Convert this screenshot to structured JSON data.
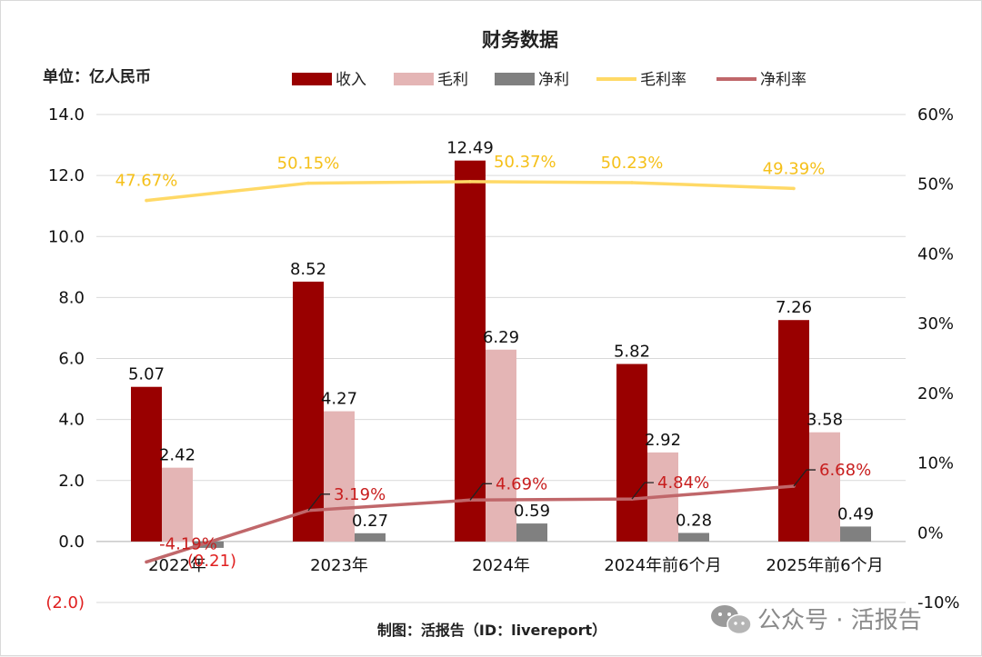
{
  "colors": {
    "revenue": "#990000",
    "gross_profit": "#e4b5b5",
    "net_profit": "#808080",
    "gross_margin": "#ffd966",
    "net_margin": "#c0676a",
    "grid": "#d9d9d9",
    "negative_text": "#e02020",
    "gross_margin_text": "#f5c01a",
    "net_margin_text": "#c81e1e"
  },
  "unit_label": "单位：亿人民币",
  "source_label": "制图：活报告（ID：livereport）",
  "watermark": {
    "icon": "wechat-icon",
    "text": "公众号 · 活报告"
  },
  "chart_data": {
    "type": "bar",
    "title": "财务数据",
    "categories": [
      "2022年",
      "2023年",
      "2024年",
      "2024年前6个月",
      "2025年前6个月"
    ],
    "series": [
      {
        "name": "收入",
        "kind": "bar",
        "axis": "left",
        "values": [
          5.07,
          8.52,
          12.49,
          5.82,
          7.26
        ],
        "labels": [
          "5.07",
          "8.52",
          "12.49",
          "5.82",
          "7.26"
        ]
      },
      {
        "name": "毛利",
        "kind": "bar",
        "axis": "left",
        "values": [
          2.42,
          4.27,
          6.29,
          2.92,
          3.58
        ],
        "labels": [
          "2.42",
          "4.27",
          "6.29",
          "2.92",
          "3.58"
        ]
      },
      {
        "name": "净利",
        "kind": "bar",
        "axis": "left",
        "values": [
          -0.21,
          0.27,
          0.59,
          0.28,
          0.49
        ],
        "labels": [
          "(0.21)",
          "0.27",
          "0.59",
          "0.28",
          "0.49"
        ]
      },
      {
        "name": "毛利率",
        "kind": "line",
        "axis": "right",
        "values": [
          47.67,
          50.15,
          50.37,
          50.23,
          49.39
        ],
        "labels": [
          "47.67%",
          "50.15%",
          "50.37%",
          "50.23%",
          "49.39%"
        ]
      },
      {
        "name": "净利率",
        "kind": "line",
        "axis": "right",
        "values": [
          -4.19,
          3.19,
          4.69,
          4.84,
          6.68
        ],
        "labels": [
          "-4.19%",
          "3.19%",
          "4.69%",
          "4.84%",
          "6.68%"
        ]
      }
    ],
    "y_left": {
      "min": -2.0,
      "max": 14.0,
      "step": 2.0,
      "tick_labels": [
        "(2.0)",
        "0.0",
        "2.0",
        "4.0",
        "6.0",
        "8.0",
        "10.0",
        "12.0",
        "14.0"
      ]
    },
    "y_right": {
      "min": -10,
      "max": 60,
      "step": 10,
      "tick_labels": [
        "-10%",
        "0%",
        "10%",
        "20%",
        "30%",
        "40%",
        "50%",
        "60%"
      ]
    },
    "grid": true,
    "legend_position": "top-center"
  }
}
